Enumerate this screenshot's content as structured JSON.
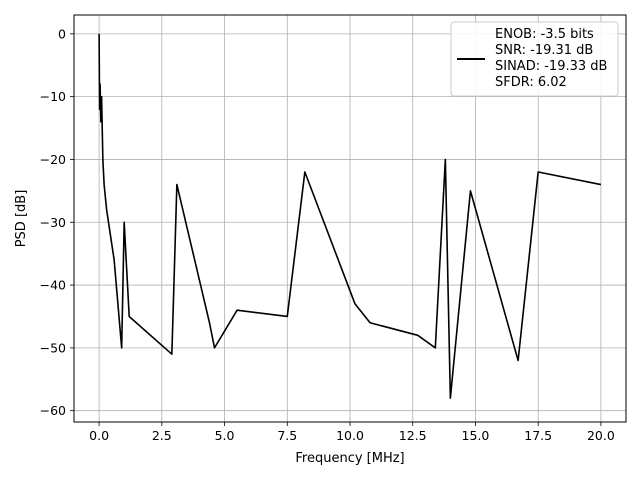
{
  "chart_data": {
    "type": "line",
    "xlabel": "Frequency [MHz]",
    "ylabel": "PSD [dB]",
    "xlim": [
      -1.0,
      21.0
    ],
    "ylim": [
      -61.8,
      3.0
    ],
    "grid": true,
    "line_color": "#000000",
    "legend": {
      "placement": "top-right",
      "lines": [
        "ENOB: -3.5 bits",
        "SNR: -19.31 dB",
        "SINAD: -19.33 dB",
        "SFDR: 6.02"
      ]
    },
    "x_ticks": [
      0,
      2.5,
      5,
      7.5,
      10,
      12.5,
      15,
      17.5,
      20
    ],
    "x_tick_labels": [
      "0.0",
      "2.5",
      "5.0",
      "7.5",
      "10.0",
      "12.5",
      "15.0",
      "17.5",
      "20.0"
    ],
    "y_ticks": [
      0,
      -10,
      -20,
      -30,
      -40,
      -50,
      -60
    ],
    "y_tick_labels": [
      "0",
      "−10",
      "−20",
      "−30",
      "−40",
      "−50",
      "−60"
    ],
    "series": [
      {
        "x": [
          0.0,
          0.02,
          0.04,
          0.07,
          0.1,
          0.15,
          0.2,
          0.3,
          0.6,
          0.9,
          1.0,
          1.2,
          2.9,
          3.1,
          4.4,
          4.6,
          5.5,
          7.5,
          8.2,
          10.2,
          10.8,
          12.7,
          13.4,
          13.8,
          14.0,
          14.8,
          16.7,
          17.5,
          20.0
        ],
        "y": [
          0,
          -12,
          -8,
          -14,
          -10,
          -20,
          -24,
          -28,
          -36,
          -50,
          -30,
          -45,
          -51,
          -24,
          -46,
          -50,
          -44,
          -45,
          -22,
          -43,
          -46,
          -48,
          -50,
          -20,
          -58,
          -25,
          -52,
          -22,
          -24
        ]
      }
    ]
  }
}
